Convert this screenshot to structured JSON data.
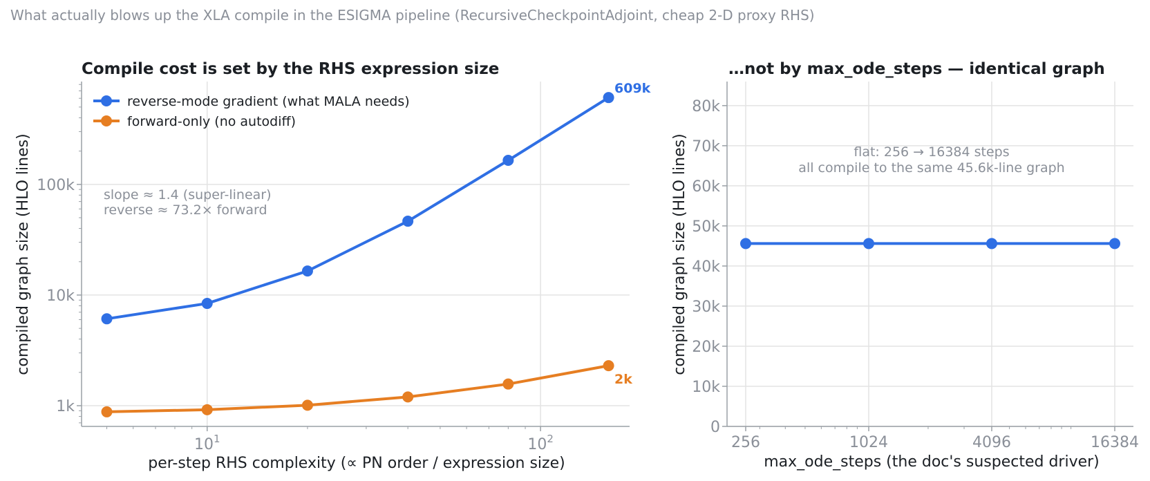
{
  "suptitle": "What actually blows up the XLA compile in the ESIGMA pipeline (RecursiveCheckpointAdjoint, cheap 2-D proxy RHS)",
  "colors": {
    "reverse": "#2f6fe4",
    "forward": "#e67e22",
    "grid": "#e3e3e3",
    "axis": "#9aa0a6",
    "tick_text": "#8a8f98"
  },
  "chart_data": [
    {
      "type": "line",
      "title": "Compile cost is set by the RHS expression size",
      "xlabel": "per-step RHS complexity  (∝ PN order / expression size)",
      "ylabel": "compiled graph size  (HLO lines)",
      "xscale": "log",
      "yscale": "log",
      "xlim": [
        4.2,
        185
      ],
      "ylim": [
        650,
        850000
      ],
      "x": [
        5,
        10,
        20,
        40,
        80,
        160
      ],
      "xticks": [
        {
          "v": 10,
          "base": "10",
          "exp": "1"
        },
        {
          "v": 100,
          "base": "10",
          "exp": "2"
        }
      ],
      "yticks": [
        {
          "v": 1000,
          "label": "1k"
        },
        {
          "v": 10000,
          "label": "10k"
        },
        {
          "v": 100000,
          "label": "100k"
        }
      ],
      "series": [
        {
          "name": "reverse-mode gradient (what MALA needs)",
          "values": [
            6100,
            8400,
            16500,
            46500,
            165000,
            609000
          ],
          "end_label": "609k"
        },
        {
          "name": "forward-only (no autodiff)",
          "values": [
            880,
            920,
            1010,
            1200,
            1570,
            2300
          ],
          "end_label": "2k"
        }
      ],
      "annotations": [
        "slope ≈ 1.4  (super-linear)",
        "reverse ≈ 73.2× forward"
      ],
      "legend": "upper-left",
      "grid": true
    },
    {
      "type": "line",
      "title": "…not by max_ode_steps — identical graph",
      "xlabel": "max_ode_steps  (the doc's suspected driver)",
      "ylabel": "compiled graph size  (HLO lines)",
      "xscale": "log2",
      "yscale": "linear",
      "ylim": [
        0,
        86000
      ],
      "x": [
        256,
        1024,
        4096,
        16384
      ],
      "xticklabels": [
        "256",
        "1024",
        "4096",
        "16384"
      ],
      "yticks": [
        {
          "v": 0,
          "label": "0"
        },
        {
          "v": 10000,
          "label": "10k"
        },
        {
          "v": 20000,
          "label": "20k"
        },
        {
          "v": 30000,
          "label": "30k"
        },
        {
          "v": 40000,
          "label": "40k"
        },
        {
          "v": 50000,
          "label": "50k"
        },
        {
          "v": 60000,
          "label": "60k"
        },
        {
          "v": 70000,
          "label": "70k"
        },
        {
          "v": 80000,
          "label": "80k"
        }
      ],
      "series": [
        {
          "values": [
            45600,
            45600,
            45600,
            45600
          ]
        }
      ],
      "annotations": [
        "flat: 256 → 16384 steps",
        "all compile to the same 45.6k-line graph"
      ],
      "grid": true
    }
  ]
}
